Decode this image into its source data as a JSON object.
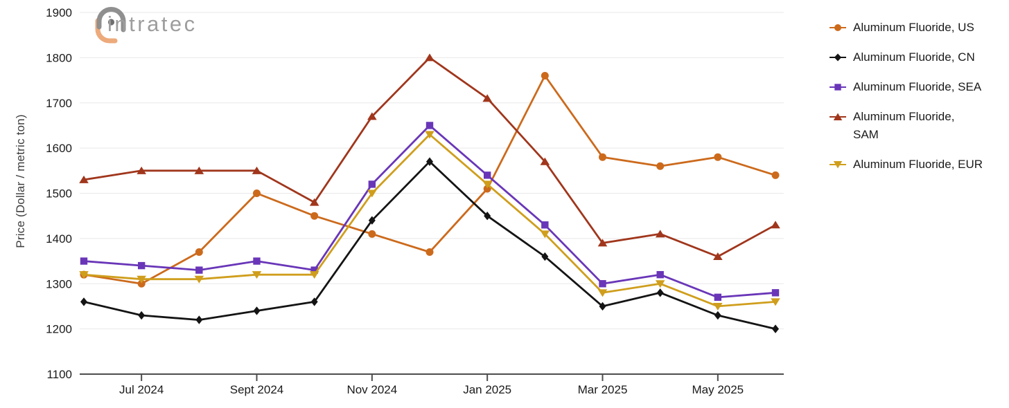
{
  "logo": {
    "text": "intratec",
    "text_color": "#9d9d9d",
    "mark_gray": "#8f8f8f",
    "mark_orange": "#edaa7b",
    "dot_color": "#6f6f6f"
  },
  "chart_data": {
    "type": "line",
    "title": "",
    "xlabel": "",
    "ylabel": "Price (Dollar / metric ton)",
    "ylim": [
      1100,
      1900
    ],
    "ytick_step": 100,
    "ytick_labels": [
      "1100",
      "1200",
      "1300",
      "1400",
      "1500",
      "1600",
      "1700",
      "1800",
      "1900"
    ],
    "x": [
      "Jun 2024",
      "Jul 2024",
      "Aug 2024",
      "Sept 2024",
      "Oct 2024",
      "Nov 2024",
      "Dec 2024",
      "Jan 2025",
      "Feb 2025",
      "Mar 2025",
      "Apr 2025",
      "May 2025",
      "Jun 2025"
    ],
    "xtick_labels": [
      "Jul 2024",
      "Sept 2024",
      "Nov 2024",
      "Jan 2025",
      "Mar 2025",
      "May 2025"
    ],
    "xtick_indices": [
      1,
      3,
      5,
      7,
      9,
      11
    ],
    "grid": "horizontal",
    "legend_position": "right",
    "grid_color": "#e8e8e8",
    "axis_color": "#4d4d4d",
    "tick_label_color": "#1a1a1a",
    "series": [
      {
        "name": "Aluminum Fluoride, US",
        "region": "us",
        "color": "#cc6a1c",
        "marker": "circle",
        "label_lines": [
          "Aluminum Fluoride, US"
        ],
        "values": [
          1320,
          1300,
          1370,
          1500,
          1450,
          1410,
          1370,
          1510,
          1760,
          1580,
          1560,
          1580,
          1540
        ]
      },
      {
        "name": "Aluminum Fluoride, CN",
        "region": "cn",
        "color": "#141414",
        "marker": "diamond",
        "label_lines": [
          "Aluminum Fluoride, CN"
        ],
        "values": [
          1260,
          1230,
          1220,
          1240,
          1260,
          1440,
          1570,
          1450,
          1360,
          1250,
          1280,
          1230,
          1200
        ]
      },
      {
        "name": "Aluminum Fluoride, SEA",
        "region": "sea",
        "color": "#6936b8",
        "marker": "square",
        "label_lines": [
          "Aluminum Fluoride, SEA"
        ],
        "values": [
          1350,
          1340,
          1330,
          1350,
          1330,
          1520,
          1650,
          1540,
          1430,
          1300,
          1320,
          1270,
          1280
        ]
      },
      {
        "name": "Aluminum Fluoride, SAM",
        "region": "sam",
        "color": "#a0361c",
        "marker": "triangle-up",
        "label_lines": [
          "Aluminum Fluoride,",
          "SAM"
        ],
        "values": [
          1530,
          1550,
          1550,
          1550,
          1480,
          1670,
          1800,
          1710,
          1570,
          1390,
          1410,
          1360,
          1430
        ]
      },
      {
        "name": "Aluminum Fluoride, EUR",
        "region": "eur",
        "color": "#cf9e1c",
        "marker": "triangle-down",
        "label_lines": [
          "Aluminum Fluoride, EUR"
        ],
        "values": [
          1320,
          1310,
          1310,
          1320,
          1320,
          1500,
          1630,
          1520,
          1410,
          1280,
          1300,
          1250,
          1260
        ]
      }
    ]
  }
}
